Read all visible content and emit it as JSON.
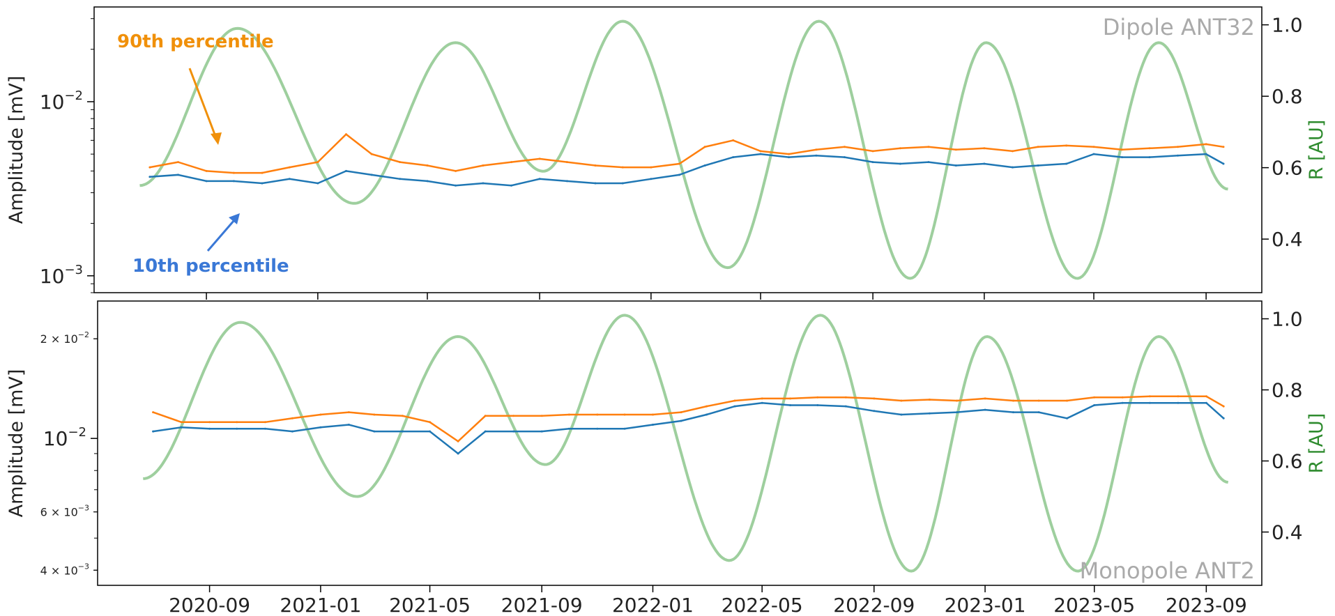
{
  "chart_data": [
    {
      "type": "line",
      "panel_label": "Dipole ANT32",
      "ylabel": "Amplitude [mV]",
      "ylabel_right": "R [AU]",
      "yscale": "log",
      "ylim": [
        0.0008,
        0.035
      ],
      "ylim_right": [
        0.25,
        1.05
      ],
      "yticks_major": [
        {
          "value": 0.01,
          "base": "10",
          "exp": "−2"
        },
        {
          "value": 0.001,
          "base": "10",
          "exp": "−3"
        }
      ],
      "yticks_right": [
        "1.0",
        "0.8",
        "0.6",
        "0.4"
      ],
      "annotations": [
        {
          "text": "90th percentile",
          "color": "#f0900a",
          "points_to": "90th percentile"
        },
        {
          "text": "10th percentile",
          "color": "#3a78d6",
          "points_to": "10th percentile"
        }
      ],
      "series": [
        {
          "name": "90th percentile",
          "color": "#ff7f0e",
          "x": [
            "2020-07-01",
            "2020-08-01",
            "2020-09-01",
            "2020-10-01",
            "2020-11-01",
            "2020-12-01",
            "2021-01-01",
            "2021-02-01",
            "2021-03-01",
            "2021-04-01",
            "2021-05-01",
            "2021-06-01",
            "2021-07-01",
            "2021-08-01",
            "2021-09-01",
            "2021-10-01",
            "2021-11-01",
            "2021-12-01",
            "2022-01-01",
            "2022-02-01",
            "2022-03-01",
            "2022-04-01",
            "2022-05-01",
            "2022-06-01",
            "2022-07-01",
            "2022-08-01",
            "2022-09-01",
            "2022-10-01",
            "2022-11-01",
            "2022-12-01",
            "2023-01-01",
            "2023-02-01",
            "2023-03-01",
            "2023-04-01",
            "2023-05-01",
            "2023-06-01",
            "2023-07-01",
            "2023-08-01",
            "2023-09-01",
            "2023-09-20"
          ],
          "y": [
            0.0042,
            0.0045,
            0.004,
            0.0039,
            0.0039,
            0.0042,
            0.0045,
            0.0065,
            0.005,
            0.0045,
            0.0043,
            0.004,
            0.0043,
            0.0045,
            0.0047,
            0.0045,
            0.0043,
            0.0042,
            0.0042,
            0.0044,
            0.0055,
            0.006,
            0.0052,
            0.005,
            0.0053,
            0.0055,
            0.0052,
            0.0054,
            0.0055,
            0.0053,
            0.0054,
            0.0052,
            0.0055,
            0.0056,
            0.0055,
            0.0053,
            0.0054,
            0.0055,
            0.0057,
            0.0055
          ]
        },
        {
          "name": "10th percentile",
          "color": "#1f77b4",
          "x": [
            "2020-07-01",
            "2020-08-01",
            "2020-09-01",
            "2020-10-01",
            "2020-11-01",
            "2020-12-01",
            "2021-01-01",
            "2021-02-01",
            "2021-03-01",
            "2021-04-01",
            "2021-05-01",
            "2021-06-01",
            "2021-07-01",
            "2021-08-01",
            "2021-09-01",
            "2021-10-01",
            "2021-11-01",
            "2021-12-01",
            "2022-01-01",
            "2022-02-01",
            "2022-03-01",
            "2022-04-01",
            "2022-05-01",
            "2022-06-01",
            "2022-07-01",
            "2022-08-01",
            "2022-09-01",
            "2022-10-01",
            "2022-11-01",
            "2022-12-01",
            "2023-01-01",
            "2023-02-01",
            "2023-03-01",
            "2023-04-01",
            "2023-05-01",
            "2023-06-01",
            "2023-07-01",
            "2023-08-01",
            "2023-09-01",
            "2023-09-20"
          ],
          "y": [
            0.0037,
            0.0038,
            0.0035,
            0.0035,
            0.0034,
            0.0036,
            0.0034,
            0.004,
            0.0038,
            0.0036,
            0.0035,
            0.0033,
            0.0034,
            0.0033,
            0.0036,
            0.0035,
            0.0034,
            0.0034,
            0.0036,
            0.0038,
            0.0043,
            0.0048,
            0.005,
            0.0048,
            0.0049,
            0.0048,
            0.0045,
            0.0044,
            0.0045,
            0.0043,
            0.0044,
            0.0042,
            0.0043,
            0.0044,
            0.005,
            0.0048,
            0.0048,
            0.0049,
            0.005,
            0.0044
          ]
        },
        {
          "name": "R [AU]",
          "color": "#5daf5d",
          "axis": "right",
          "kind": "heliocentric-distance"
        }
      ]
    },
    {
      "type": "line",
      "panel_label": "Monopole ANT2",
      "ylabel": "Amplitude [mV]",
      "ylabel_right": "R [AU]",
      "yscale": "log",
      "ylim": [
        0.0036,
        0.026
      ],
      "ylim_right": [
        0.25,
        1.05
      ],
      "yticks_major": [
        {
          "value": 0.01,
          "base": "10",
          "exp": "−2"
        }
      ],
      "yticks_minor_labeled": [
        {
          "value": 0.02,
          "label": "2 × 10",
          "exp": "−2"
        },
        {
          "value": 0.006,
          "label": "6 × 10",
          "exp": "−3"
        },
        {
          "value": 0.004,
          "label": "4 × 10",
          "exp": "−3"
        }
      ],
      "yticks_right": [
        "1.0",
        "0.8",
        "0.6",
        "0.4"
      ],
      "series": [
        {
          "name": "90th percentile",
          "color": "#ff7f0e",
          "x": [
            "2020-07-01",
            "2020-08-01",
            "2020-09-01",
            "2020-10-01",
            "2020-11-01",
            "2020-12-01",
            "2021-01-01",
            "2021-02-01",
            "2021-03-01",
            "2021-04-01",
            "2021-05-01",
            "2021-06-01",
            "2021-07-01",
            "2021-08-01",
            "2021-09-01",
            "2021-10-01",
            "2021-11-01",
            "2021-12-01",
            "2022-01-01",
            "2022-02-01",
            "2022-03-01",
            "2022-04-01",
            "2022-05-01",
            "2022-06-01",
            "2022-07-01",
            "2022-08-01",
            "2022-09-01",
            "2022-10-01",
            "2022-11-01",
            "2022-12-01",
            "2023-01-01",
            "2023-02-01",
            "2023-03-01",
            "2023-04-01",
            "2023-05-01",
            "2023-06-01",
            "2023-07-01",
            "2023-08-01",
            "2023-09-01",
            "2023-09-20"
          ],
          "y": [
            0.012,
            0.0112,
            0.0112,
            0.0112,
            0.0112,
            0.0115,
            0.0118,
            0.012,
            0.0118,
            0.0117,
            0.0112,
            0.0098,
            0.0117,
            0.0117,
            0.0117,
            0.0118,
            0.0118,
            0.0118,
            0.0118,
            0.012,
            0.0125,
            0.013,
            0.0132,
            0.0132,
            0.0133,
            0.0133,
            0.0132,
            0.013,
            0.0131,
            0.013,
            0.0132,
            0.013,
            0.013,
            0.013,
            0.0133,
            0.0133,
            0.0134,
            0.0134,
            0.0134,
            0.0125
          ]
        },
        {
          "name": "10th percentile",
          "color": "#1f77b4",
          "x": [
            "2020-07-01",
            "2020-08-01",
            "2020-09-01",
            "2020-10-01",
            "2020-11-01",
            "2020-12-01",
            "2021-01-01",
            "2021-02-01",
            "2021-03-01",
            "2021-04-01",
            "2021-05-01",
            "2021-06-01",
            "2021-07-01",
            "2021-08-01",
            "2021-09-01",
            "2021-10-01",
            "2021-11-01",
            "2021-12-01",
            "2022-01-01",
            "2022-02-01",
            "2022-03-01",
            "2022-04-01",
            "2022-05-01",
            "2022-06-01",
            "2022-07-01",
            "2022-08-01",
            "2022-09-01",
            "2022-10-01",
            "2022-11-01",
            "2022-12-01",
            "2023-01-01",
            "2023-02-01",
            "2023-03-01",
            "2023-04-01",
            "2023-05-01",
            "2023-06-01",
            "2023-07-01",
            "2023-08-01",
            "2023-09-01",
            "2023-09-20"
          ],
          "y": [
            0.0105,
            0.0108,
            0.0107,
            0.0107,
            0.0107,
            0.0105,
            0.0108,
            0.011,
            0.0105,
            0.0105,
            0.0105,
            0.009,
            0.0105,
            0.0105,
            0.0105,
            0.0107,
            0.0107,
            0.0107,
            0.011,
            0.0113,
            0.0118,
            0.0125,
            0.0128,
            0.0126,
            0.0126,
            0.0125,
            0.0121,
            0.0118,
            0.0119,
            0.012,
            0.0122,
            0.012,
            0.012,
            0.0115,
            0.0126,
            0.0128,
            0.0128,
            0.0128,
            0.0128,
            0.0115
          ]
        },
        {
          "name": "R [AU]",
          "color": "#5daf5d",
          "axis": "right",
          "kind": "heliocentric-distance"
        }
      ]
    }
  ],
  "x_axis": {
    "type": "date",
    "xlim": [
      "2020-05-01",
      "2023-11-01"
    ],
    "ticks": [
      "2020-09",
      "2021-01",
      "2021-05",
      "2021-09",
      "2022-01",
      "2022-05",
      "2022-09",
      "2023-01",
      "2023-05",
      "2023-09"
    ]
  },
  "r_au_curve": {
    "x": [
      "2020-06-20",
      "2020-10-05",
      "2021-02-10",
      "2021-06-01",
      "2021-09-05",
      "2021-12-01",
      "2022-03-26",
      "2022-07-04",
      "2022-10-12",
      "2023-01-03",
      "2023-04-13",
      "2023-07-11",
      "2023-09-25"
    ],
    "y": [
      0.55,
      0.99,
      0.5,
      0.95,
      0.59,
      1.01,
      0.32,
      1.01,
      0.29,
      0.95,
      0.29,
      0.95,
      0.54
    ]
  },
  "colors": {
    "p90": "#ff7f0e",
    "p10": "#1f77b4",
    "r_au": "#5daf5d",
    "anno_orange": "#f0900a",
    "anno_blue": "#3a78d6"
  }
}
